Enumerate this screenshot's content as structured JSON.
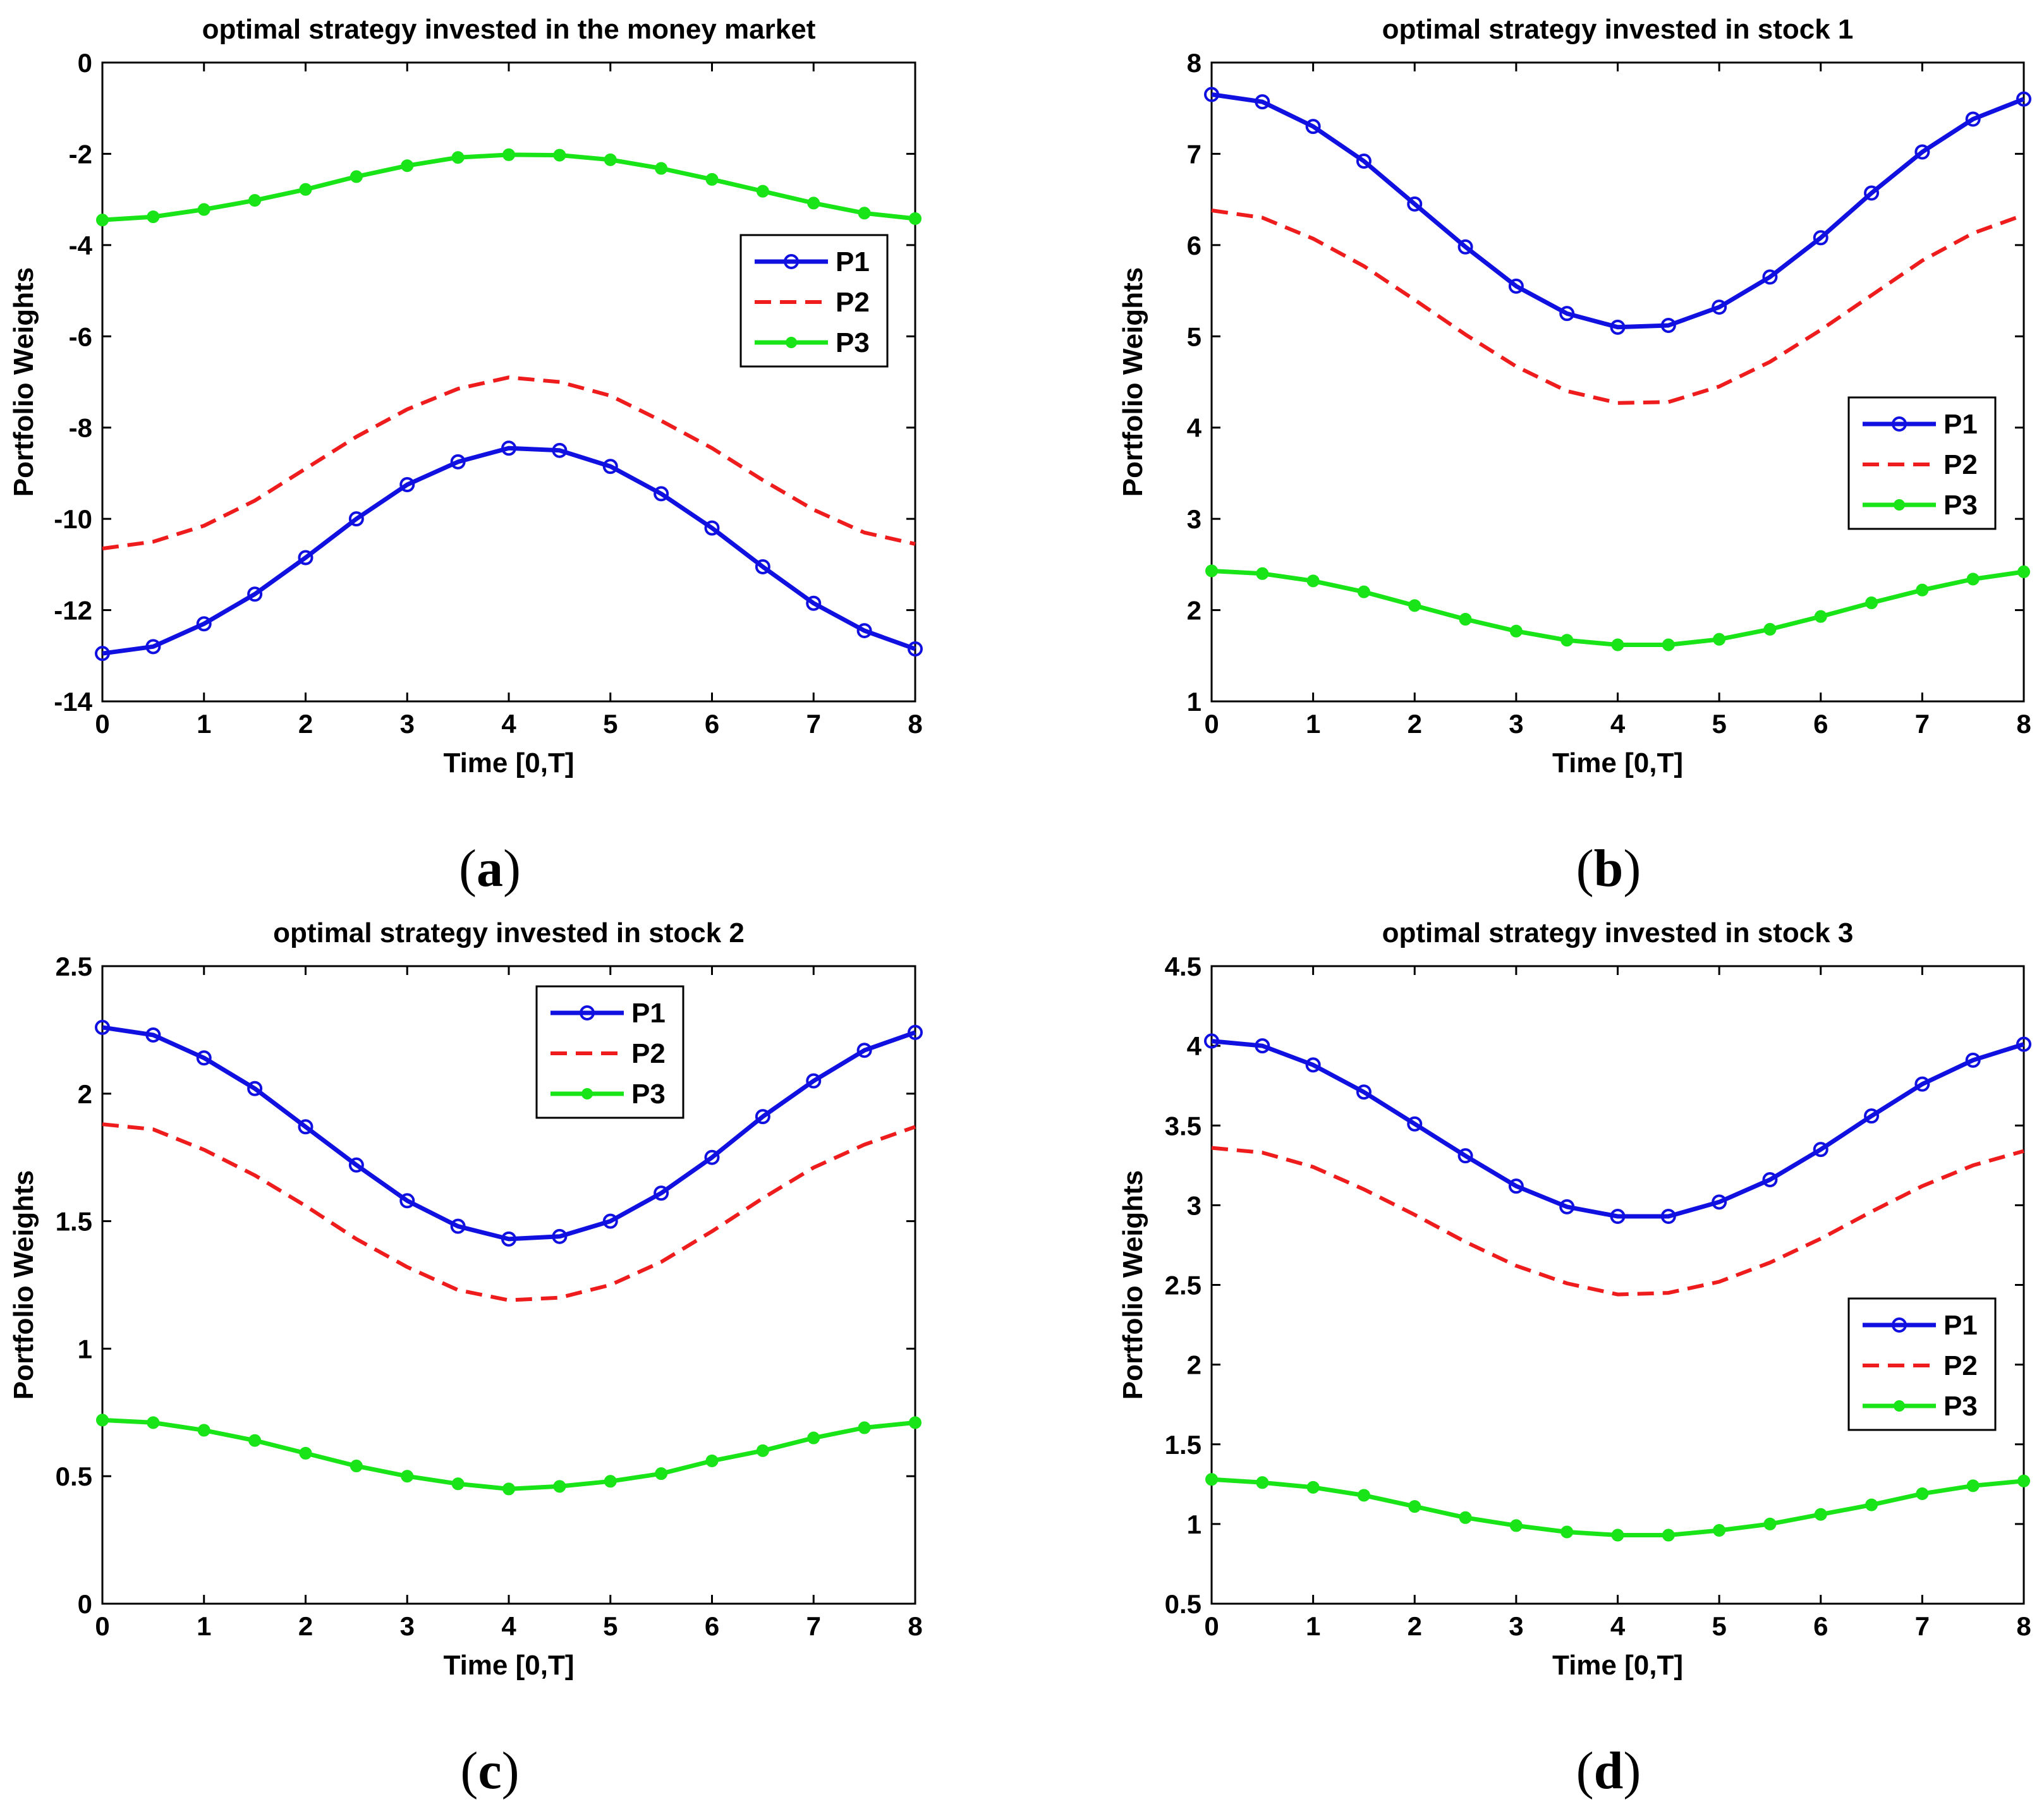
{
  "colors": {
    "P1": "#1010e0",
    "P2": "#ee1c1c",
    "P3": "#18e418",
    "axis": "#000000",
    "background": "#ffffff"
  },
  "chart_data": [
    {
      "type": "line",
      "panel_label": "a",
      "title": "optimal strategy invested in the money market",
      "xlabel": "Time [0,T]",
      "ylabel": "Portfolio Weights",
      "xlim": [
        0,
        8
      ],
      "ylim": [
        -14,
        0
      ],
      "xticks": [
        "0",
        "1",
        "2",
        "3",
        "4",
        "5",
        "6",
        "7",
        "8"
      ],
      "yticks": [
        "-14",
        "-12",
        "-10",
        "-8",
        "-6",
        "-4",
        "-2",
        "0"
      ],
      "legend_position": "center-right",
      "x": [
        0,
        0.5,
        1,
        1.5,
        2,
        2.5,
        3,
        3.5,
        4,
        4.5,
        5,
        5.5,
        6,
        6.5,
        7,
        7.5,
        8
      ],
      "series": [
        {
          "name": "P1",
          "style": "solid-circle",
          "values": [
            -12.95,
            -12.8,
            -12.3,
            -11.65,
            -10.85,
            -10.0,
            -9.25,
            -8.75,
            -8.45,
            -8.5,
            -8.85,
            -9.45,
            -10.2,
            -11.05,
            -11.85,
            -12.45,
            -12.85
          ]
        },
        {
          "name": "P2",
          "style": "dashed",
          "values": [
            -10.65,
            -10.5,
            -10.15,
            -9.6,
            -8.9,
            -8.2,
            -7.6,
            -7.15,
            -6.9,
            -7.0,
            -7.3,
            -7.85,
            -8.45,
            -9.15,
            -9.8,
            -10.3,
            -10.55
          ]
        },
        {
          "name": "P3",
          "style": "solid-star",
          "values": [
            -3.45,
            -3.38,
            -3.22,
            -3.02,
            -2.78,
            -2.5,
            -2.26,
            -2.08,
            -2.02,
            -2.03,
            -2.13,
            -2.32,
            -2.56,
            -2.82,
            -3.08,
            -3.3,
            -3.42
          ]
        }
      ]
    },
    {
      "type": "line",
      "panel_label": "b",
      "title": "optimal strategy invested in stock 1",
      "xlabel": "Time [0,T]",
      "ylabel": "Portfolio Weights",
      "xlim": [
        0,
        8
      ],
      "ylim": [
        1,
        8
      ],
      "xticks": [
        "0",
        "1",
        "2",
        "3",
        "4",
        "5",
        "6",
        "7",
        "8"
      ],
      "yticks": [
        "1",
        "2",
        "3",
        "4",
        "5",
        "6",
        "7",
        "8"
      ],
      "legend_position": "center-right",
      "x": [
        0,
        0.5,
        1,
        1.5,
        2,
        2.5,
        3,
        3.5,
        4,
        4.5,
        5,
        5.5,
        6,
        6.5,
        7,
        7.5,
        8
      ],
      "series": [
        {
          "name": "P1",
          "style": "solid-circle",
          "values": [
            7.65,
            7.57,
            7.3,
            6.92,
            6.45,
            5.98,
            5.55,
            5.25,
            5.1,
            5.12,
            5.32,
            5.65,
            6.08,
            6.57,
            7.02,
            7.38,
            7.6
          ]
        },
        {
          "name": "P2",
          "style": "dashed",
          "values": [
            6.38,
            6.3,
            6.07,
            5.77,
            5.4,
            5.02,
            4.67,
            4.4,
            4.27,
            4.28,
            4.45,
            4.72,
            5.07,
            5.45,
            5.83,
            6.13,
            6.33
          ]
        },
        {
          "name": "P3",
          "style": "solid-star",
          "values": [
            2.43,
            2.4,
            2.32,
            2.2,
            2.05,
            1.9,
            1.77,
            1.67,
            1.62,
            1.62,
            1.68,
            1.79,
            1.93,
            2.08,
            2.22,
            2.34,
            2.42
          ]
        }
      ]
    },
    {
      "type": "line",
      "panel_label": "c",
      "title": "optimal strategy invested in stock 2",
      "xlabel": "Time [0,T]",
      "ylabel": "Portfolio Weights",
      "xlim": [
        0,
        8
      ],
      "ylim": [
        0,
        2.5
      ],
      "xticks": [
        "0",
        "1",
        "2",
        "3",
        "4",
        "5",
        "6",
        "7",
        "8"
      ],
      "yticks": [
        "0",
        "0.5",
        "1",
        "1.5",
        "2",
        "2.5"
      ],
      "legend_position": "top-center",
      "x": [
        0,
        0.5,
        1,
        1.5,
        2,
        2.5,
        3,
        3.5,
        4,
        4.5,
        5,
        5.5,
        6,
        6.5,
        7,
        7.5,
        8
      ],
      "series": [
        {
          "name": "P1",
          "style": "solid-circle",
          "values": [
            2.26,
            2.23,
            2.14,
            2.02,
            1.87,
            1.72,
            1.58,
            1.48,
            1.43,
            1.44,
            1.5,
            1.61,
            1.75,
            1.91,
            2.05,
            2.17,
            2.24
          ]
        },
        {
          "name": "P2",
          "style": "dashed",
          "values": [
            1.88,
            1.86,
            1.78,
            1.68,
            1.56,
            1.43,
            1.32,
            1.23,
            1.19,
            1.2,
            1.25,
            1.34,
            1.46,
            1.59,
            1.71,
            1.8,
            1.87
          ]
        },
        {
          "name": "P3",
          "style": "solid-star",
          "values": [
            0.72,
            0.71,
            0.68,
            0.64,
            0.59,
            0.54,
            0.5,
            0.47,
            0.45,
            0.46,
            0.48,
            0.51,
            0.56,
            0.6,
            0.65,
            0.69,
            0.71
          ]
        }
      ]
    },
    {
      "type": "line",
      "panel_label": "d",
      "title": "optimal strategy invested in stock 3",
      "xlabel": "Time [0,T]",
      "ylabel": "Portfolio Weights",
      "xlim": [
        0,
        8
      ],
      "ylim": [
        0.5,
        4.5
      ],
      "xticks": [
        "0",
        "1",
        "2",
        "3",
        "4",
        "5",
        "6",
        "7",
        "8"
      ],
      "yticks": [
        "0.5",
        "1",
        "1.5",
        "2",
        "2.5",
        "3",
        "3.5",
        "4",
        "4.5"
      ],
      "legend_position": "center-right",
      "x": [
        0,
        0.5,
        1,
        1.5,
        2,
        2.5,
        3,
        3.5,
        4,
        4.5,
        5,
        5.5,
        6,
        6.5,
        7,
        7.5,
        8
      ],
      "series": [
        {
          "name": "P1",
          "style": "solid-circle",
          "values": [
            4.03,
            4.0,
            3.88,
            3.71,
            3.51,
            3.31,
            3.12,
            2.99,
            2.93,
            2.93,
            3.02,
            3.16,
            3.35,
            3.56,
            3.76,
            3.91,
            4.01
          ]
        },
        {
          "name": "P2",
          "style": "dashed",
          "values": [
            3.36,
            3.33,
            3.24,
            3.1,
            2.94,
            2.77,
            2.62,
            2.51,
            2.44,
            2.45,
            2.52,
            2.64,
            2.79,
            2.96,
            3.12,
            3.25,
            3.34
          ]
        },
        {
          "name": "P3",
          "style": "solid-star",
          "values": [
            1.28,
            1.26,
            1.23,
            1.18,
            1.11,
            1.04,
            0.99,
            0.95,
            0.93,
            0.93,
            0.96,
            1.0,
            1.06,
            1.12,
            1.19,
            1.24,
            1.27
          ]
        }
      ]
    }
  ]
}
